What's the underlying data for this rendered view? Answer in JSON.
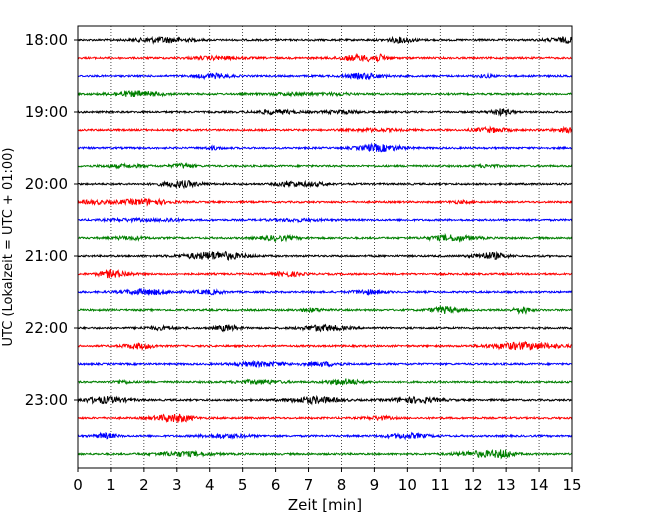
{
  "chart_data": {
    "type": "line",
    "title": "",
    "xlabel": "Zeit  [min]",
    "ylabel": "UTC (Lokalzeit = UTC + 01:00)",
    "xlim": [
      0,
      15
    ],
    "x_ticks": [
      0,
      1,
      2,
      3,
      4,
      5,
      6,
      7,
      8,
      9,
      10,
      11,
      12,
      13,
      14,
      15
    ],
    "x_tick_labels": [
      "0",
      "1",
      "2",
      "3",
      "4",
      "5",
      "6",
      "7",
      "8",
      "9",
      "10",
      "11",
      "12",
      "13",
      "14",
      "15"
    ],
    "y_tick_labels": [
      "18:00",
      "19:00",
      "20:00",
      "21:00",
      "22:00",
      "23:00"
    ],
    "grid": "vertical dotted lines at each minute",
    "trace_interval_min": 15,
    "traces": [
      {
        "start": "18:00",
        "color": "#000000"
      },
      {
        "start": "18:15",
        "color": "#ff0000"
      },
      {
        "start": "18:30",
        "color": "#0000ff"
      },
      {
        "start": "18:45",
        "color": "#008000"
      },
      {
        "start": "19:00",
        "color": "#000000"
      },
      {
        "start": "19:15",
        "color": "#ff0000"
      },
      {
        "start": "19:30",
        "color": "#0000ff"
      },
      {
        "start": "19:45",
        "color": "#008000"
      },
      {
        "start": "20:00",
        "color": "#000000"
      },
      {
        "start": "20:15",
        "color": "#ff0000"
      },
      {
        "start": "20:30",
        "color": "#0000ff"
      },
      {
        "start": "20:45",
        "color": "#008000"
      },
      {
        "start": "21:00",
        "color": "#000000"
      },
      {
        "start": "21:15",
        "color": "#ff0000"
      },
      {
        "start": "21:30",
        "color": "#0000ff"
      },
      {
        "start": "21:45",
        "color": "#008000"
      },
      {
        "start": "22:00",
        "color": "#000000"
      },
      {
        "start": "22:15",
        "color": "#ff0000"
      },
      {
        "start": "22:30",
        "color": "#0000ff"
      },
      {
        "start": "22:45",
        "color": "#008000"
      },
      {
        "start": "23:00",
        "color": "#000000"
      },
      {
        "start": "23:15",
        "color": "#ff0000"
      },
      {
        "start": "23:30",
        "color": "#0000ff"
      },
      {
        "start": "23:45",
        "color": "#008000"
      }
    ]
  }
}
